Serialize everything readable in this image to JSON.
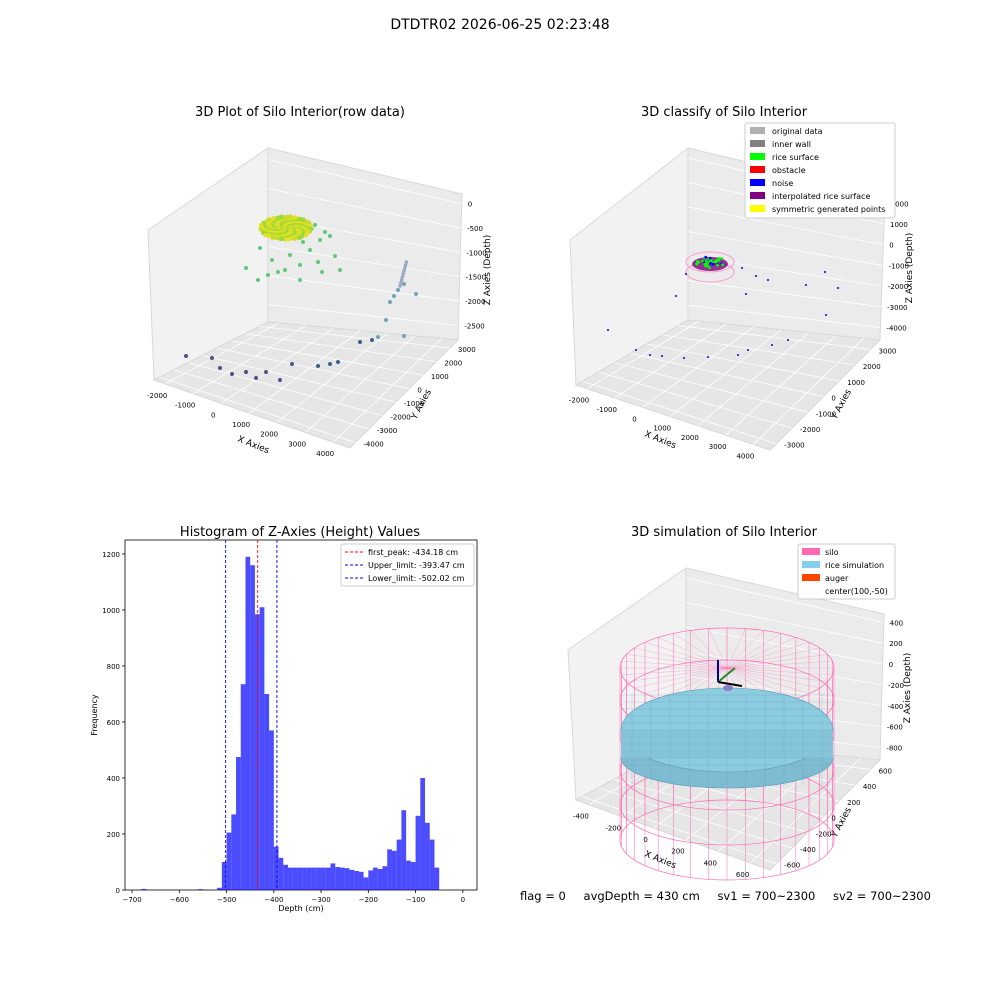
{
  "figure": {
    "suptitle": "DTDTR02 2026-06-25 02:23:48",
    "status": {
      "flag": "flag = 0",
      "avg_depth": "avgDepth = 430 cm",
      "sv1": "sv1 = 700~2300",
      "sv2": "sv2 = 700~2300"
    }
  },
  "panels": {
    "raw": {
      "title": "3D Plot of Silo Interior(row data)",
      "xlabel": "X Axies",
      "ylabel": "Y Axies",
      "zlabel": "Z Axies (Depth)",
      "xticks": [
        "-2000",
        "-1000",
        "0",
        "1000",
        "2000",
        "3000",
        "4000"
      ],
      "yticks": [
        "-4000",
        "-3000",
        "-2000",
        "-1000",
        "0",
        "1000",
        "2000",
        "3000"
      ],
      "zticks": [
        "0",
        "-500",
        "-1000",
        "-1500",
        "-2000",
        "-2500"
      ]
    },
    "classify": {
      "title": "3D classify of Silo Interior",
      "xlabel": "X Axies",
      "ylabel": "Y Axies",
      "zlabel": "Z Axies (Depth)",
      "xticks": [
        "-2000",
        "-1000",
        "0",
        "1000",
        "2000",
        "3000",
        "4000"
      ],
      "yticks": [
        "-3000",
        "-2000",
        "-1000",
        "0",
        "1000",
        "2000",
        "3000"
      ],
      "zticks": [
        "2000",
        "1000",
        "0",
        "-1000",
        "-2000",
        "-3000",
        "-4000"
      ],
      "legend": [
        {
          "label": "original data",
          "color": "#b0b0b0"
        },
        {
          "label": "inner wall",
          "color": "#808080"
        },
        {
          "label": "rice surface",
          "color": "#00ff00"
        },
        {
          "label": "obstacle",
          "color": "#ff0000"
        },
        {
          "label": "noise",
          "color": "#0000ff"
        },
        {
          "label": "interpolated rice surface",
          "color": "#800080"
        },
        {
          "label": "symmetric generated points",
          "color": "#ffff00"
        }
      ]
    },
    "simulation": {
      "title": "3D simulation of Silo Interior",
      "xlabel": "X Axies",
      "ylabel": "Y Axies",
      "zlabel": "Z Axies (Depth)",
      "xticks": [
        "-400",
        "-200",
        "0",
        "200",
        "400",
        "600"
      ],
      "yticks": [
        "-600",
        "-400",
        "-200",
        "0",
        "200",
        "400",
        "600"
      ],
      "zticks": [
        "400",
        "200",
        "0",
        "-200",
        "-400",
        "-600",
        "-800"
      ],
      "legend": [
        {
          "label": "silo",
          "color": "#ff69b4"
        },
        {
          "label": "rice simulation",
          "color": "#87ceeb"
        },
        {
          "label": "auger",
          "color": "#ff4500"
        },
        {
          "label": "center(100,-50)",
          "color": ""
        }
      ]
    }
  },
  "chart_data": {
    "type": "bar",
    "title": "Histogram of Z-Axies (Height) Values",
    "xlabel": "Depth (cm)",
    "ylabel": "Frequency",
    "xlim": [
      -715,
      30
    ],
    "ylim": [
      0,
      1250
    ],
    "xticks": [
      -700,
      -600,
      -500,
      -400,
      -300,
      -200,
      -100,
      0
    ],
    "yticks": [
      0,
      200,
      400,
      600,
      800,
      1000,
      1200
    ],
    "bar_color": "#0000ff",
    "bin_width": 10,
    "bins": [
      {
        "x0": -680,
        "value": 4
      },
      {
        "x0": -560,
        "value": 3
      },
      {
        "x0": -520,
        "value": 8
      },
      {
        "x0": -510,
        "value": 100
      },
      {
        "x0": -500,
        "value": 205
      },
      {
        "x0": -490,
        "value": 270
      },
      {
        "x0": -480,
        "value": 475
      },
      {
        "x0": -470,
        "value": 735
      },
      {
        "x0": -460,
        "value": 1190
      },
      {
        "x0": -450,
        "value": 1160
      },
      {
        "x0": -440,
        "value": 985
      },
      {
        "x0": -430,
        "value": 1010
      },
      {
        "x0": -420,
        "value": 700
      },
      {
        "x0": -410,
        "value": 570
      },
      {
        "x0": -400,
        "value": 155
      },
      {
        "x0": -390,
        "value": 115
      },
      {
        "x0": -380,
        "value": 90
      },
      {
        "x0": -370,
        "value": 80
      },
      {
        "x0": -360,
        "value": 80
      },
      {
        "x0": -350,
        "value": 80
      },
      {
        "x0": -340,
        "value": 80
      },
      {
        "x0": -330,
        "value": 80
      },
      {
        "x0": -320,
        "value": 80
      },
      {
        "x0": -310,
        "value": 80
      },
      {
        "x0": -300,
        "value": 80
      },
      {
        "x0": -290,
        "value": 80
      },
      {
        "x0": -280,
        "value": 95
      },
      {
        "x0": -270,
        "value": 82
      },
      {
        "x0": -260,
        "value": 80
      },
      {
        "x0": -250,
        "value": 78
      },
      {
        "x0": -240,
        "value": 72
      },
      {
        "x0": -230,
        "value": 68
      },
      {
        "x0": -220,
        "value": 65
      },
      {
        "x0": -210,
        "value": 45
      },
      {
        "x0": -200,
        "value": 70
      },
      {
        "x0": -190,
        "value": 80
      },
      {
        "x0": -180,
        "value": 75
      },
      {
        "x0": -170,
        "value": 85
      },
      {
        "x0": -160,
        "value": 145
      },
      {
        "x0": -150,
        "value": 140
      },
      {
        "x0": -140,
        "value": 180
      },
      {
        "x0": -130,
        "value": 285
      },
      {
        "x0": -120,
        "value": 105
      },
      {
        "x0": -110,
        "value": 100
      },
      {
        "x0": -100,
        "value": 265
      },
      {
        "x0": -90,
        "value": 400
      },
      {
        "x0": -80,
        "value": 240
      },
      {
        "x0": -70,
        "value": 180
      },
      {
        "x0": -60,
        "value": 80
      }
    ],
    "vlines": [
      {
        "x": -434.18,
        "color": "#ff0000",
        "label": "first_peak: -434.18 cm"
      },
      {
        "x": -393.47,
        "color": "#0000ff",
        "label": "Upper_limit: -393.47 cm"
      },
      {
        "x": -502.02,
        "color": "#0000ff",
        "label": "Lower_limit: -502.02 cm"
      }
    ]
  }
}
